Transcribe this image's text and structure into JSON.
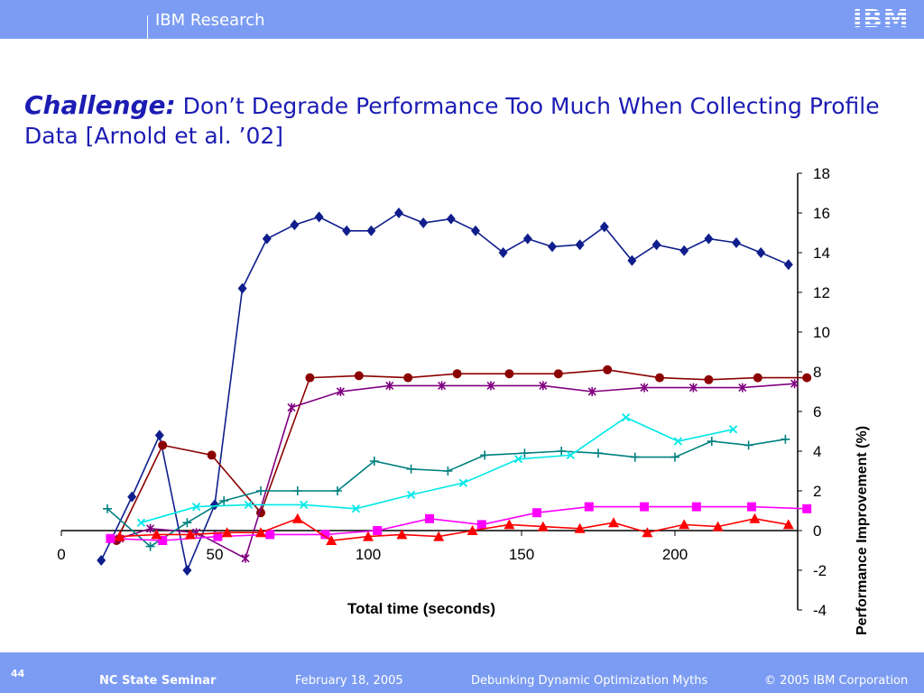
{
  "header": {
    "brand": "IBM Research",
    "logo_text": "IBM",
    "bar_color": "#7b9cf2"
  },
  "title": {
    "lead": "Challenge:",
    "rest": " Don’t Degrade Performance Too Much When Collecting Profile Data [Arnold et al. ’02]"
  },
  "footer": {
    "page_number": "44",
    "event": "NC State Seminar",
    "date": "February 18, 2005",
    "talk": "Debunking Dynamic Optimization Myths",
    "copyright": "© 2005 IBM Corporation"
  },
  "chart_data": {
    "type": "line",
    "xlabel": "Total time (seconds)",
    "ylabel": "Performance Improvement (%)",
    "xlim": [
      0,
      240
    ],
    "ylim": [
      -4,
      18
    ],
    "x_ticks": [
      0,
      50,
      100,
      150,
      200
    ],
    "y_ticks": [
      18,
      16,
      14,
      12,
      10,
      8,
      6,
      4,
      2,
      0,
      -2,
      -4
    ],
    "grid": false,
    "legend": "none",
    "series": [
      {
        "color": "#0f1e8c",
        "marker": "diamond",
        "points": [
          [
            13,
            -1.5
          ],
          [
            23,
            1.7
          ],
          [
            32,
            4.8
          ],
          [
            41,
            -2
          ],
          [
            50,
            1.3
          ],
          [
            59,
            12.2
          ],
          [
            67,
            14.7
          ],
          [
            76,
            15.4
          ],
          [
            84,
            15.8
          ],
          [
            93,
            15.1
          ],
          [
            101,
            15.1
          ],
          [
            110,
            16
          ],
          [
            118,
            15.5
          ],
          [
            127,
            15.7
          ],
          [
            135,
            15.1
          ],
          [
            144,
            14
          ],
          [
            152,
            14.7
          ],
          [
            160,
            14.3
          ],
          [
            169,
            14.4
          ],
          [
            177,
            15.3
          ],
          [
            186,
            13.6
          ],
          [
            194,
            14.4
          ],
          [
            203,
            14.1
          ],
          [
            211,
            14.7
          ],
          [
            220,
            14.5
          ],
          [
            228,
            14
          ],
          [
            237,
            13.4
          ]
        ]
      },
      {
        "color": "#8b0000",
        "marker": "circle",
        "points": [
          [
            18,
            -0.5
          ],
          [
            33,
            4.3
          ],
          [
            49,
            3.8
          ],
          [
            65,
            0.9
          ],
          [
            81,
            7.7
          ],
          [
            97,
            7.8
          ],
          [
            113,
            7.7
          ],
          [
            129,
            7.9
          ],
          [
            146,
            7.9
          ],
          [
            162,
            7.9
          ],
          [
            178,
            8.1
          ],
          [
            195,
            7.7
          ],
          [
            211,
            7.6
          ],
          [
            227,
            7.7
          ],
          [
            243,
            7.7
          ]
        ]
      },
      {
        "color": "#800080",
        "marker": "star",
        "points": [
          [
            19,
            -0.4
          ],
          [
            29,
            0.1
          ],
          [
            44,
            -0.1
          ],
          [
            60,
            -1.4
          ],
          [
            75,
            6.2
          ],
          [
            91,
            7
          ],
          [
            107,
            7.3
          ],
          [
            124,
            7.3
          ],
          [
            140,
            7.3
          ],
          [
            157,
            7.3
          ],
          [
            173,
            7
          ],
          [
            190,
            7.2
          ],
          [
            206,
            7.2
          ],
          [
            222,
            7.2
          ],
          [
            239,
            7.4
          ]
        ]
      },
      {
        "color": "#008080",
        "marker": "plus",
        "points": [
          [
            15,
            1.1
          ],
          [
            29,
            -0.8
          ],
          [
            41,
            0.4
          ],
          [
            53,
            1.5
          ],
          [
            65,
            2
          ],
          [
            77,
            2
          ],
          [
            90,
            2
          ],
          [
            102,
            3.5
          ],
          [
            114,
            3.1
          ],
          [
            126,
            3
          ],
          [
            138,
            3.8
          ],
          [
            151,
            3.9
          ],
          [
            163,
            4
          ],
          [
            175,
            3.9
          ],
          [
            187,
            3.7
          ],
          [
            200,
            3.7
          ],
          [
            212,
            4.5
          ],
          [
            224,
            4.3
          ],
          [
            236,
            4.6
          ]
        ]
      },
      {
        "color": "#00e8e8",
        "marker": "x",
        "points": [
          [
            26,
            0.4
          ],
          [
            44,
            1.2
          ],
          [
            61,
            1.3
          ],
          [
            79,
            1.3
          ],
          [
            96,
            1.1
          ],
          [
            114,
            1.8
          ],
          [
            131,
            2.4
          ],
          [
            149,
            3.6
          ],
          [
            166,
            3.8
          ],
          [
            184,
            5.7
          ],
          [
            201,
            4.5
          ],
          [
            219,
            5.1
          ]
        ]
      },
      {
        "color": "#ff00ff",
        "marker": "square",
        "points": [
          [
            16,
            -0.4
          ],
          [
            33,
            -0.5
          ],
          [
            51,
            -0.3
          ],
          [
            68,
            -0.2
          ],
          [
            86,
            -0.2
          ],
          [
            103,
            0
          ],
          [
            120,
            0.6
          ],
          [
            137,
            0.3
          ],
          [
            155,
            0.9
          ],
          [
            172,
            1.2
          ],
          [
            190,
            1.2
          ],
          [
            207,
            1.2
          ],
          [
            225,
            1.2
          ],
          [
            243,
            1.1
          ]
        ]
      },
      {
        "color": "#ff0000",
        "marker": "triangle",
        "points": [
          [
            19,
            -0.3
          ],
          [
            31,
            -0.2
          ],
          [
            42,
            -0.2
          ],
          [
            54,
            -0.1
          ],
          [
            65,
            -0.1
          ],
          [
            77,
            0.6
          ],
          [
            88,
            -0.5
          ],
          [
            100,
            -0.3
          ],
          [
            111,
            -0.2
          ],
          [
            123,
            -0.3
          ],
          [
            134,
            0
          ],
          [
            146,
            0.3
          ],
          [
            157,
            0.2
          ],
          [
            169,
            0.1
          ],
          [
            180,
            0.4
          ],
          [
            191,
            -0.1
          ],
          [
            203,
            0.3
          ],
          [
            214,
            0.2
          ],
          [
            226,
            0.6
          ],
          [
            237,
            0.3
          ]
        ]
      }
    ]
  }
}
